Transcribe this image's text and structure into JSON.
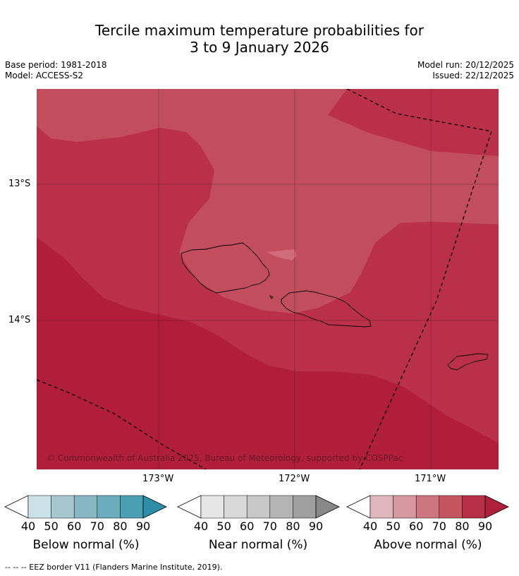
{
  "title_line1": "Tercile maximum temperature probabilities for",
  "title_line2": "3 to 9 January 2026",
  "left_meta": {
    "base_period": "Base period: 1981-2018",
    "model": "Model: ACCESS-S2"
  },
  "right_meta": {
    "model_run": "Model run: 20/12/2025",
    "issued": "Issued: 22/12/2025"
  },
  "map": {
    "lat_labels": [
      "13°S",
      "14°S"
    ],
    "lon_labels": [
      "173°W",
      "172°W",
      "171°W"
    ],
    "copyright": "© Commonwealth of Australia 2025, Bureau of Meteorology, supported by COSPPac"
  },
  "colorbars": [
    {
      "label": "Below normal (%)",
      "ticks": [
        "40",
        "50",
        "60",
        "70",
        "80",
        "90"
      ],
      "colors": [
        "#ffffff",
        "#c9e1e7",
        "#a6c7cd",
        "#89b6c3",
        "#6badbd",
        "#4a9fb3",
        "#2d8fa7"
      ]
    },
    {
      "label": "Near normal (%)",
      "ticks": [
        "40",
        "50",
        "60",
        "70",
        "80",
        "90"
      ],
      "colors": [
        "#ffffff",
        "#e6e6e6",
        "#d8d8d8",
        "#c8c8c8",
        "#b4b4b4",
        "#a0a0a0",
        "#888888"
      ]
    },
    {
      "label": "Above normal (%)",
      "ticks": [
        "40",
        "50",
        "60",
        "70",
        "80",
        "90"
      ],
      "colors": [
        "#ffffff",
        "#e0b6bd",
        "#d6979f",
        "#cc7680",
        "#c35460",
        "#b83048",
        "#b01f3c"
      ]
    }
  ],
  "footer": "--  --  -- EEZ border V11 (Flanders Marine Institute, 2019).",
  "palette": {
    "band70": "#c24d5d",
    "band80": "#bb3049",
    "band90": "#b01e39",
    "light": "#d06c79"
  }
}
